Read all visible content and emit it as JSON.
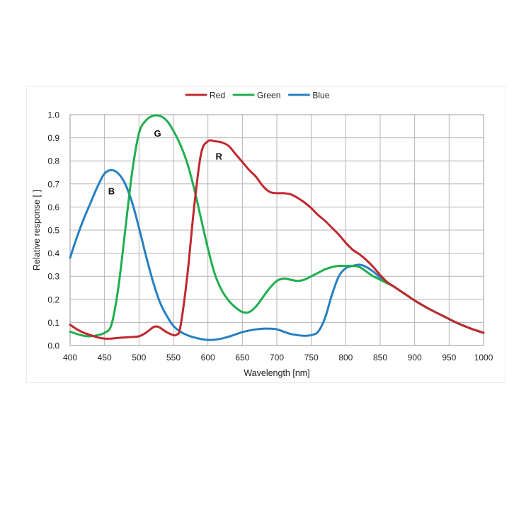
{
  "chart_data": {
    "type": "line",
    "title": "",
    "xlabel": "Wavelength [nm]",
    "ylabel": "Relative response [ ]",
    "xlim": [
      400,
      1000
    ],
    "ylim": [
      0,
      1.0
    ],
    "x_ticks": [
      400,
      450,
      500,
      550,
      600,
      650,
      700,
      750,
      800,
      850,
      900,
      950,
      1000
    ],
    "y_ticks": [
      "0.0",
      "0.1",
      "0.2",
      "0.3",
      "0.4",
      "0.5",
      "0.6",
      "0.7",
      "0.8",
      "0.9",
      "1.0"
    ],
    "grid": true,
    "legend_position": "top-center",
    "series": [
      {
        "name": "Red",
        "color": "#c0282d",
        "label": "R",
        "points": [
          [
            400,
            0.09
          ],
          [
            410,
            0.07
          ],
          [
            420,
            0.055
          ],
          [
            430,
            0.045
          ],
          [
            440,
            0.035
          ],
          [
            450,
            0.03
          ],
          [
            460,
            0.03
          ],
          [
            470,
            0.033
          ],
          [
            480,
            0.035
          ],
          [
            490,
            0.037
          ],
          [
            500,
            0.04
          ],
          [
            510,
            0.055
          ],
          [
            520,
            0.078
          ],
          [
            525,
            0.083
          ],
          [
            530,
            0.078
          ],
          [
            540,
            0.058
          ],
          [
            550,
            0.045
          ],
          [
            555,
            0.048
          ],
          [
            560,
            0.08
          ],
          [
            570,
            0.3
          ],
          [
            580,
            0.6
          ],
          [
            590,
            0.83
          ],
          [
            600,
            0.885
          ],
          [
            610,
            0.885
          ],
          [
            620,
            0.88
          ],
          [
            630,
            0.865
          ],
          [
            640,
            0.83
          ],
          [
            650,
            0.795
          ],
          [
            660,
            0.76
          ],
          [
            670,
            0.73
          ],
          [
            680,
            0.69
          ],
          [
            690,
            0.665
          ],
          [
            700,
            0.66
          ],
          [
            710,
            0.66
          ],
          [
            720,
            0.655
          ],
          [
            730,
            0.64
          ],
          [
            740,
            0.62
          ],
          [
            750,
            0.595
          ],
          [
            760,
            0.565
          ],
          [
            770,
            0.54
          ],
          [
            780,
            0.51
          ],
          [
            790,
            0.48
          ],
          [
            800,
            0.445
          ],
          [
            810,
            0.415
          ],
          [
            820,
            0.395
          ],
          [
            830,
            0.37
          ],
          [
            840,
            0.34
          ],
          [
            850,
            0.305
          ],
          [
            860,
            0.275
          ],
          [
            870,
            0.255
          ],
          [
            880,
            0.235
          ],
          [
            890,
            0.215
          ],
          [
            900,
            0.195
          ],
          [
            920,
            0.16
          ],
          [
            940,
            0.13
          ],
          [
            960,
            0.1
          ],
          [
            980,
            0.075
          ],
          [
            1000,
            0.055
          ]
        ]
      },
      {
        "name": "Green",
        "color": "#1eae4e",
        "label": "G",
        "points": [
          [
            400,
            0.06
          ],
          [
            410,
            0.05
          ],
          [
            420,
            0.042
          ],
          [
            430,
            0.04
          ],
          [
            440,
            0.045
          ],
          [
            450,
            0.055
          ],
          [
            460,
            0.09
          ],
          [
            470,
            0.25
          ],
          [
            480,
            0.5
          ],
          [
            490,
            0.75
          ],
          [
            500,
            0.92
          ],
          [
            510,
            0.975
          ],
          [
            520,
            0.995
          ],
          [
            530,
            0.995
          ],
          [
            540,
            0.975
          ],
          [
            550,
            0.93
          ],
          [
            560,
            0.87
          ],
          [
            570,
            0.79
          ],
          [
            580,
            0.68
          ],
          [
            590,
            0.55
          ],
          [
            600,
            0.42
          ],
          [
            610,
            0.31
          ],
          [
            620,
            0.24
          ],
          [
            630,
            0.195
          ],
          [
            640,
            0.165
          ],
          [
            650,
            0.145
          ],
          [
            660,
            0.145
          ],
          [
            670,
            0.17
          ],
          [
            680,
            0.21
          ],
          [
            690,
            0.25
          ],
          [
            700,
            0.28
          ],
          [
            710,
            0.29
          ],
          [
            720,
            0.285
          ],
          [
            730,
            0.28
          ],
          [
            740,
            0.285
          ],
          [
            750,
            0.3
          ],
          [
            760,
            0.315
          ],
          [
            770,
            0.33
          ],
          [
            780,
            0.34
          ],
          [
            790,
            0.345
          ],
          [
            800,
            0.345
          ],
          [
            810,
            0.345
          ],
          [
            820,
            0.34
          ],
          [
            830,
            0.32
          ],
          [
            840,
            0.3
          ],
          [
            850,
            0.285
          ],
          [
            860,
            0.27
          ],
          [
            870,
            0.255
          ],
          [
            880,
            0.235
          ],
          [
            890,
            0.215
          ],
          [
            900,
            0.195
          ],
          [
            920,
            0.16
          ],
          [
            940,
            0.13
          ],
          [
            960,
            0.1
          ],
          [
            980,
            0.075
          ],
          [
            1000,
            0.055
          ]
        ]
      },
      {
        "name": "Blue",
        "color": "#2580c3",
        "label": "B",
        "points": [
          [
            400,
            0.38
          ],
          [
            410,
            0.47
          ],
          [
            420,
            0.55
          ],
          [
            430,
            0.62
          ],
          [
            440,
            0.69
          ],
          [
            450,
            0.745
          ],
          [
            460,
            0.76
          ],
          [
            470,
            0.745
          ],
          [
            480,
            0.7
          ],
          [
            490,
            0.62
          ],
          [
            500,
            0.51
          ],
          [
            510,
            0.39
          ],
          [
            520,
            0.28
          ],
          [
            530,
            0.19
          ],
          [
            540,
            0.13
          ],
          [
            550,
            0.085
          ],
          [
            560,
            0.06
          ],
          [
            570,
            0.045
          ],
          [
            580,
            0.035
          ],
          [
            590,
            0.028
          ],
          [
            600,
            0.024
          ],
          [
            610,
            0.025
          ],
          [
            620,
            0.03
          ],
          [
            630,
            0.038
          ],
          [
            640,
            0.048
          ],
          [
            650,
            0.058
          ],
          [
            660,
            0.065
          ],
          [
            670,
            0.07
          ],
          [
            680,
            0.073
          ],
          [
            690,
            0.073
          ],
          [
            700,
            0.07
          ],
          [
            710,
            0.06
          ],
          [
            720,
            0.05
          ],
          [
            730,
            0.045
          ],
          [
            740,
            0.042
          ],
          [
            750,
            0.045
          ],
          [
            760,
            0.06
          ],
          [
            770,
            0.12
          ],
          [
            780,
            0.22
          ],
          [
            790,
            0.3
          ],
          [
            800,
            0.335
          ],
          [
            810,
            0.345
          ],
          [
            820,
            0.35
          ],
          [
            830,
            0.34
          ],
          [
            840,
            0.32
          ],
          [
            850,
            0.295
          ],
          [
            860,
            0.275
          ],
          [
            870,
            0.255
          ],
          [
            880,
            0.235
          ],
          [
            890,
            0.215
          ],
          [
            900,
            0.195
          ],
          [
            920,
            0.16
          ],
          [
            940,
            0.13
          ],
          [
            960,
            0.1
          ],
          [
            980,
            0.075
          ],
          [
            1000,
            0.055
          ]
        ]
      }
    ],
    "annotations": [
      {
        "text": "G",
        "x": 527,
        "y": 0.92
      },
      {
        "text": "R",
        "x": 616,
        "y": 0.82
      },
      {
        "text": "B",
        "x": 460,
        "y": 0.67
      }
    ]
  }
}
